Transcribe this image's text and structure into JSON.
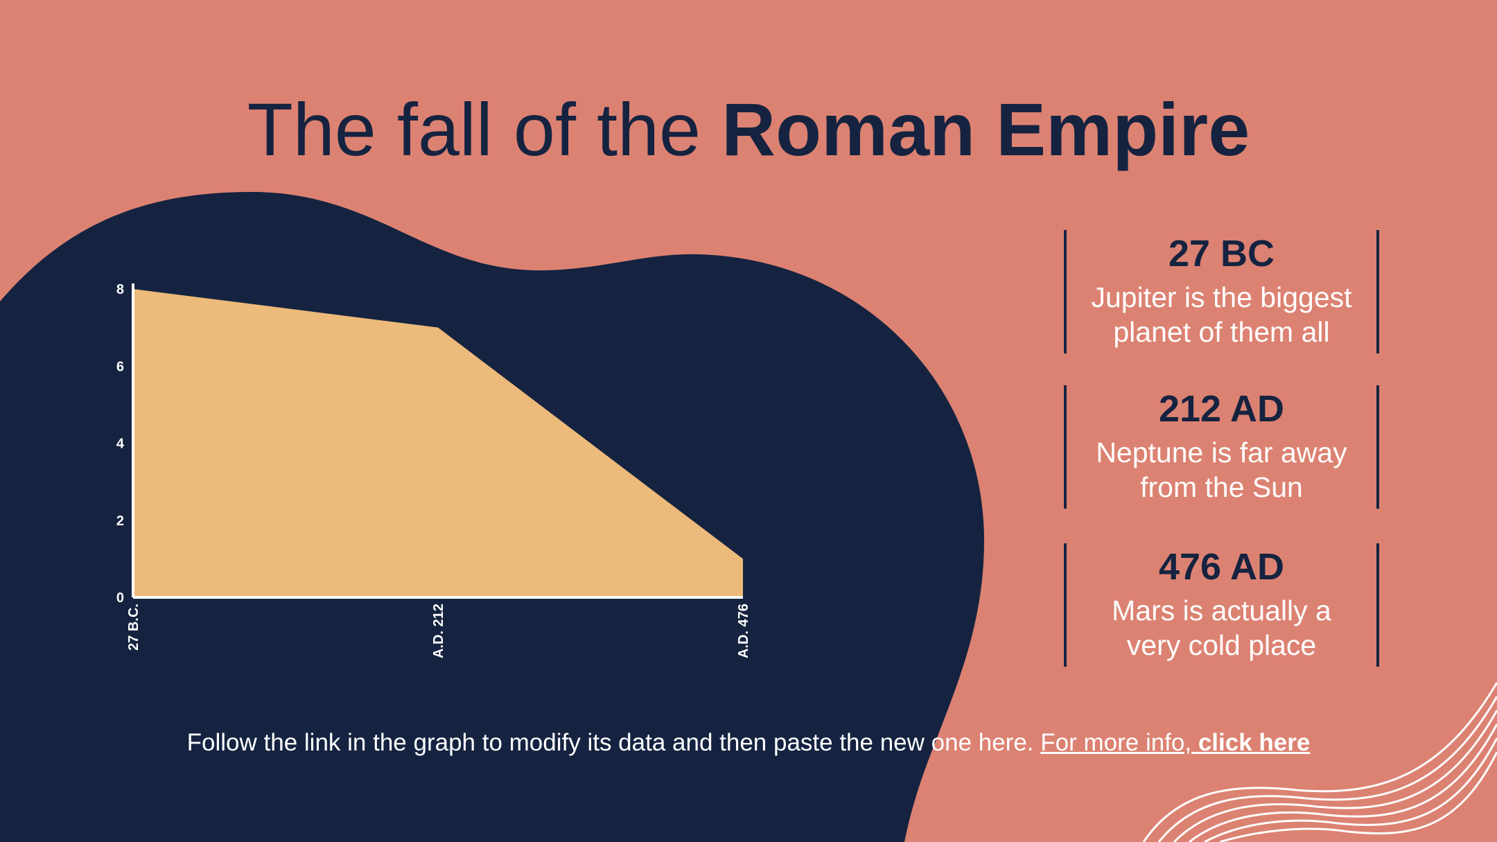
{
  "slide": {
    "title_regular": "The fall of the ",
    "title_bold": "Roman Empire"
  },
  "colors": {
    "background": "#dc8272",
    "blob": "#152340",
    "area_fill": "#ecba7a",
    "axis": "#ffffff",
    "text_light": "#ffffff",
    "text_dark": "#152340"
  },
  "cards": [
    {
      "year": "27 BC",
      "line1": "Jupiter is the biggest",
      "line2": "planet of them all"
    },
    {
      "year": "212 AD",
      "line1": "Neptune is far away",
      "line2": "from the Sun"
    },
    {
      "year": "476 AD",
      "line1": "Mars is actually a",
      "line2": "very cold place"
    }
  ],
  "footer": {
    "text": "Follow the link in the graph to modify its data and then paste the new one here. ",
    "link_regular": "For more info, ",
    "link_bold": "click here"
  },
  "chart_data": {
    "type": "area",
    "title": "",
    "xlabel": "",
    "ylabel": "",
    "categories": [
      "27 B.C.",
      "A.D. 212",
      "A.D. 476"
    ],
    "values": [
      8,
      7,
      1
    ],
    "ylim": [
      0,
      8
    ],
    "yticks": [
      "0",
      "2",
      "4",
      "6",
      "8"
    ],
    "grid": false,
    "legend": "none"
  }
}
